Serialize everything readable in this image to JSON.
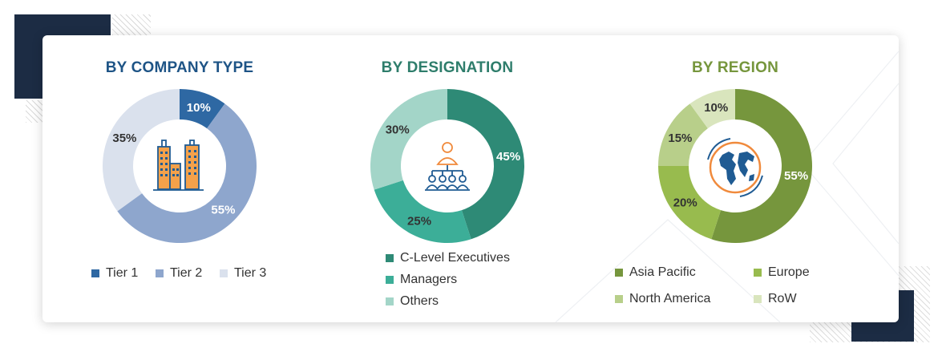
{
  "chart_data": [
    {
      "type": "pie",
      "title": "BY COMPANY TYPE",
      "categories": [
        "Tier 1",
        "Tier 2",
        "Tier 3"
      ],
      "values": [
        10,
        55,
        35
      ],
      "value_labels": [
        "10%",
        "55%",
        "35%"
      ],
      "colors": [
        "#2e68a3",
        "#8ea6cd",
        "#dae1ed"
      ],
      "label_colors": [
        "#ffffff",
        "#ffffff",
        "#333333"
      ],
      "title_color": "#1e5486",
      "center_icon": "buildings-icon",
      "legend_position": "bottom"
    },
    {
      "type": "pie",
      "title": "BY DESIGNATION",
      "categories": [
        "C-Level Executives",
        "Managers",
        "Others"
      ],
      "values": [
        45,
        25,
        30
      ],
      "value_labels": [
        "45%",
        "25%",
        "30%"
      ],
      "colors": [
        "#2e8a76",
        "#3cae98",
        "#a3d5c8"
      ],
      "label_colors": [
        "#ffffff",
        "#333333",
        "#333333"
      ],
      "title_color": "#2e7d6b",
      "center_icon": "org-hierarchy-icon",
      "legend_position": "bottom"
    },
    {
      "type": "pie",
      "title": "BY REGION",
      "categories": [
        "Asia Pacific",
        "Europe",
        "North America",
        "RoW"
      ],
      "values": [
        55,
        20,
        15,
        10
      ],
      "value_labels": [
        "55%",
        "20%",
        "15%",
        "10%"
      ],
      "colors": [
        "#76963d",
        "#98bb4e",
        "#b8cf8a",
        "#d9e5bd"
      ],
      "label_colors": [
        "#ffffff",
        "#333333",
        "#333333",
        "#333333"
      ],
      "title_color": "#76963d",
      "center_icon": "globe-icon",
      "legend_position": "bottom"
    }
  ]
}
